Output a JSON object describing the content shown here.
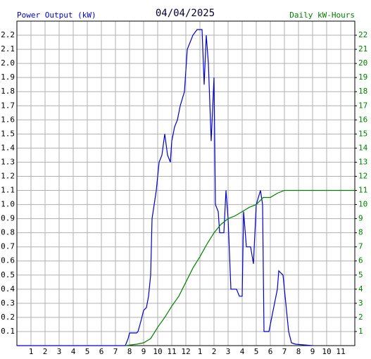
{
  "chart_data": {
    "type": "line",
    "title": "04/04/2025",
    "y_label": "Power Output (kW)",
    "y2_label": "Daily kW-Hours",
    "xlim": [
      0,
      24
    ],
    "xticks": [
      1,
      2,
      3,
      4,
      5,
      6,
      7,
      8,
      9,
      10,
      11,
      12,
      {
        "value": 13,
        "label": "1"
      },
      {
        "value": 14,
        "label": "2"
      },
      {
        "value": 15,
        "label": "3"
      },
      {
        "value": 16,
        "label": "4"
      },
      {
        "value": 17,
        "label": "5"
      },
      {
        "value": 18,
        "label": "6"
      },
      {
        "value": 19,
        "label": "7"
      },
      {
        "value": 20,
        "label": "8"
      },
      {
        "value": 21,
        "label": "9"
      },
      {
        "value": 22,
        "label": "10"
      },
      {
        "value": 23,
        "label": "11"
      }
    ],
    "ylim": [
      0,
      2.3
    ],
    "yticks": [
      0.1,
      0.2,
      0.3,
      0.4,
      0.5,
      0.6,
      0.7,
      0.8,
      0.9,
      {
        "value": 1,
        "label": "1.0"
      },
      1.1,
      1.2,
      1.3,
      1.4,
      1.5,
      1.6,
      1.7,
      1.8,
      1.9,
      {
        "value": 2,
        "label": "2.0"
      },
      2.1,
      2.2
    ],
    "y2lim": [
      0,
      23
    ],
    "y2ticks": [
      1,
      2,
      3,
      4,
      5,
      6,
      7,
      8,
      9,
      10,
      11,
      12,
      13,
      14,
      15,
      16,
      17,
      18,
      19,
      20,
      21,
      22
    ],
    "grid": true,
    "series": [
      {
        "name": "Power Output (kW)",
        "color": "#0000cc",
        "axis": "y",
        "x": [
          0,
          7.7,
          7.9,
          8.0,
          8.5,
          8.6,
          8.8,
          9.0,
          9.2,
          9.35,
          9.5,
          9.6,
          9.75,
          9.9,
          10.1,
          10.3,
          10.5,
          10.7,
          10.9,
          11.0,
          11.2,
          11.4,
          11.6,
          11.9,
          12.1,
          12.3,
          12.5,
          12.8,
          13.15,
          13.3,
          13.45,
          13.6,
          13.8,
          14.0,
          14.1,
          14.3,
          14.4,
          14.7,
          14.85,
          15.0,
          15.2,
          15.6,
          15.8,
          16.0,
          16.1,
          16.3,
          16.6,
          16.8,
          17.0,
          17.3,
          17.45,
          17.55,
          17.9,
          18.1,
          18.3,
          18.5,
          18.6,
          18.9,
          19.1,
          19.3,
          19.5,
          19.8,
          21.0
        ],
        "values": [
          0,
          0,
          0.05,
          0.09,
          0.09,
          0.1,
          0.17,
          0.25,
          0.27,
          0.35,
          0.5,
          0.9,
          1.0,
          1.1,
          1.3,
          1.35,
          1.5,
          1.35,
          1.3,
          1.45,
          1.55,
          1.6,
          1.7,
          1.8,
          2.1,
          2.15,
          2.2,
          2.24,
          2.24,
          1.85,
          2.2,
          2.0,
          1.45,
          1.9,
          1.0,
          0.95,
          0.8,
          0.8,
          1.1,
          0.9,
          0.4,
          0.4,
          0.35,
          0.35,
          0.95,
          0.7,
          0.7,
          0.58,
          1.0,
          1.1,
          1.0,
          0.1,
          0.1,
          0.2,
          0.3,
          0.4,
          0.53,
          0.5,
          0.3,
          0.1,
          0.02,
          0.01,
          0
        ]
      },
      {
        "name": "Daily kW-Hours",
        "color": "#008000",
        "axis": "y2",
        "x": [
          7.7,
          8.5,
          9.0,
          9.5,
          10.0,
          10.5,
          11.0,
          11.5,
          12.0,
          12.5,
          13.0,
          13.5,
          14.0,
          14.5,
          15.0,
          15.5,
          16.0,
          16.5,
          17.0,
          17.5,
          18.0,
          18.5,
          19.0,
          24.0
        ],
        "values": [
          0,
          0.1,
          0.2,
          0.5,
          1.3,
          2.0,
          2.8,
          3.5,
          4.5,
          5.5,
          6.3,
          7.2,
          8.0,
          8.6,
          9.0,
          9.2,
          9.5,
          9.8,
          10.0,
          10.5,
          10.5,
          10.8,
          11.0,
          11.0
        ]
      }
    ]
  }
}
